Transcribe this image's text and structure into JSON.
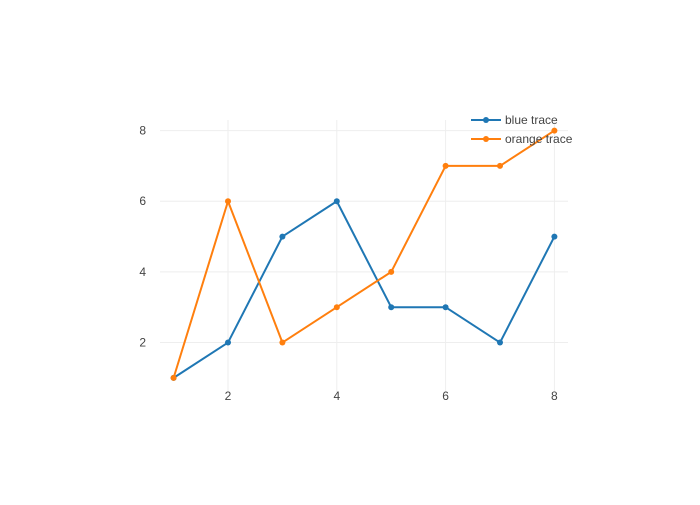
{
  "chart_data": {
    "type": "line",
    "x": [
      1,
      2,
      3,
      4,
      5,
      6,
      7,
      8
    ],
    "series": [
      {
        "name": "blue trace",
        "color": "#1f77b4",
        "values": [
          1,
          2,
          5,
          6,
          3,
          3,
          2,
          5
        ]
      },
      {
        "name": "orange trace",
        "color": "#ff7f0e",
        "values": [
          1,
          6,
          2,
          3,
          4,
          7,
          7,
          8
        ]
      }
    ],
    "xticks": [
      2,
      4,
      6,
      8
    ],
    "yticks": [
      2,
      4,
      6,
      8
    ],
    "xlim": [
      0.75,
      8.25
    ],
    "ylim": [
      0.6,
      8.3
    ],
    "grid": true,
    "legend_position": "top-right",
    "markers": true
  }
}
